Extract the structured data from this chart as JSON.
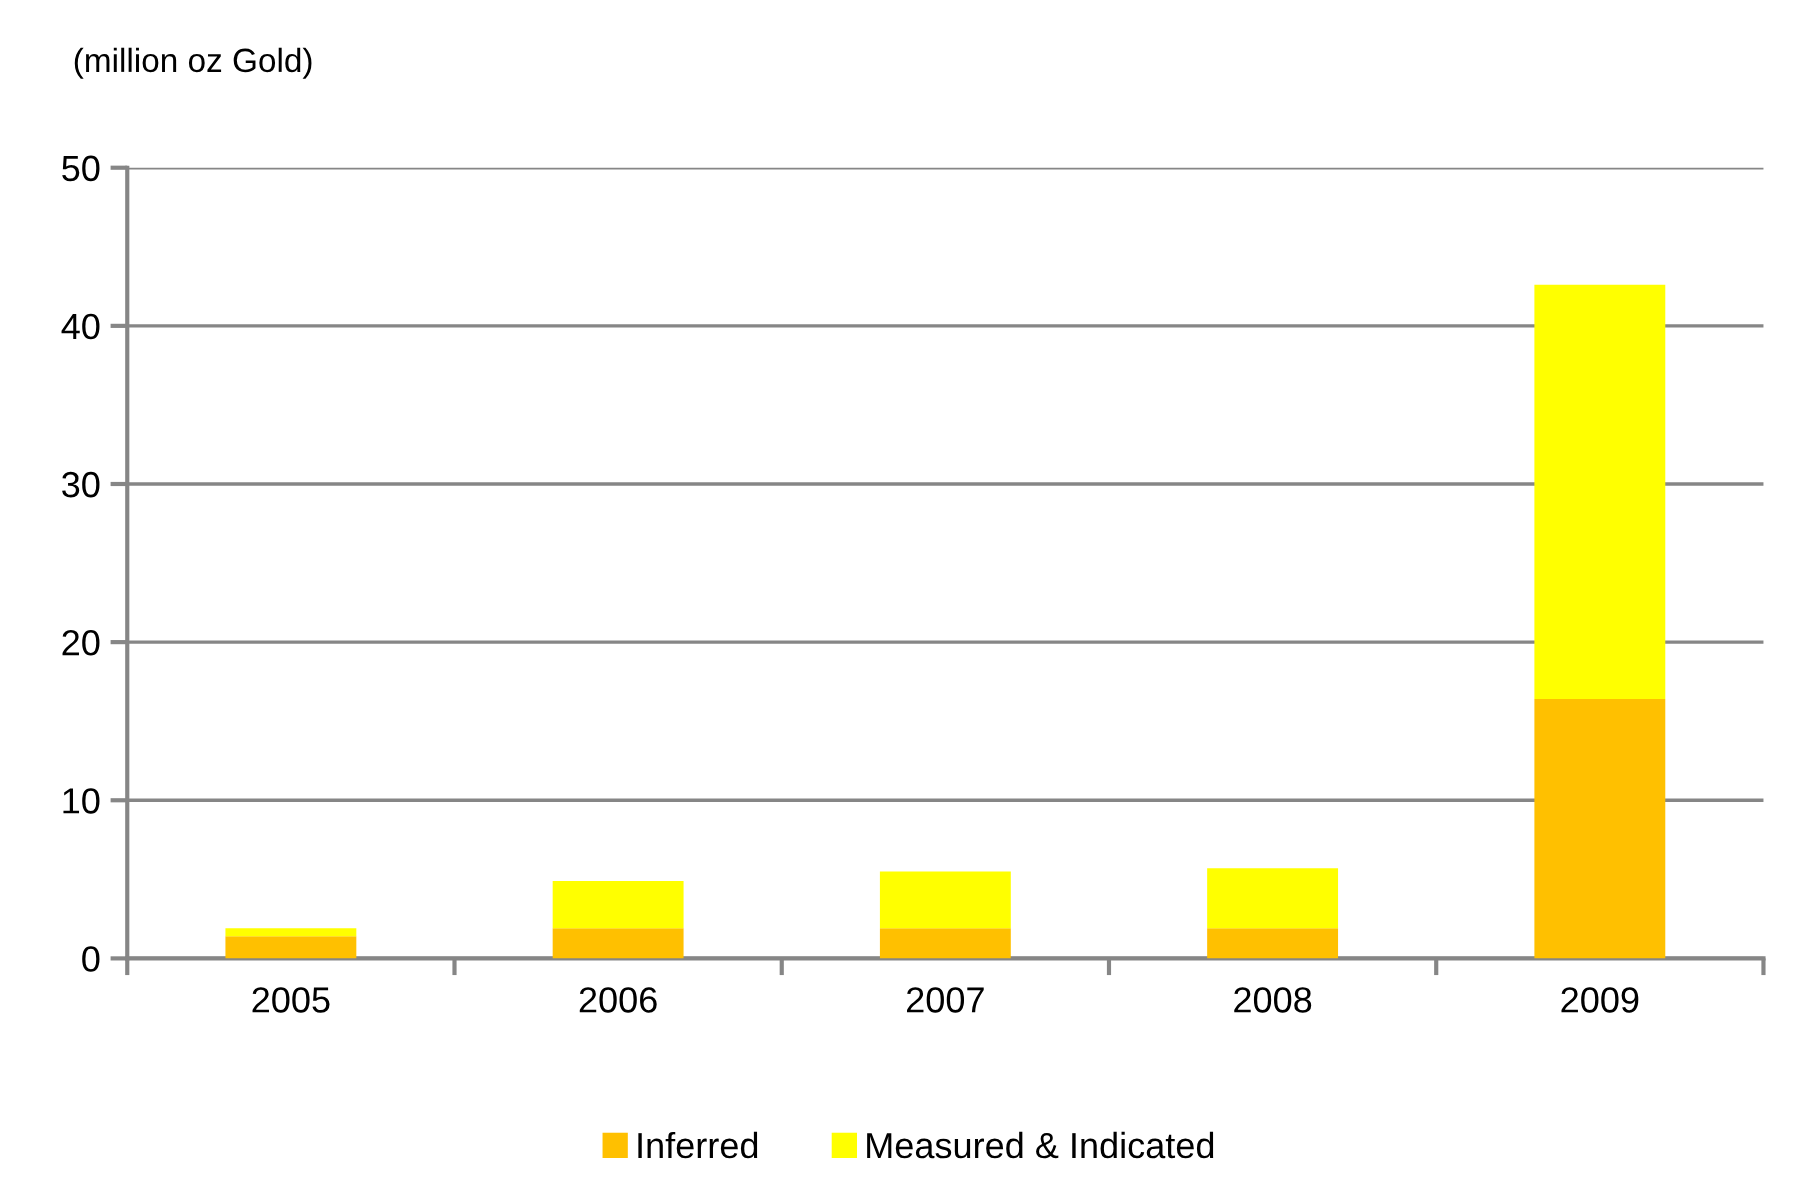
{
  "chart_data": {
    "type": "bar",
    "stacked": true,
    "ylabel": "(million oz Gold)",
    "categories": [
      "2005",
      "2006",
      "2007",
      "2008",
      "2009"
    ],
    "series": [
      {
        "name": "Inferred",
        "color": "#ffc000",
        "values": [
          1.4,
          1.9,
          1.9,
          1.9,
          16.4
        ]
      },
      {
        "name": "Measured & Indicated",
        "color": "#ffff00",
        "values": [
          0.5,
          3.0,
          3.6,
          3.8,
          26.2
        ]
      }
    ],
    "ylim": [
      0,
      50
    ],
    "yticks": [
      0,
      10,
      20,
      30,
      40,
      50
    ],
    "grid": "y",
    "legend": "bottom"
  }
}
